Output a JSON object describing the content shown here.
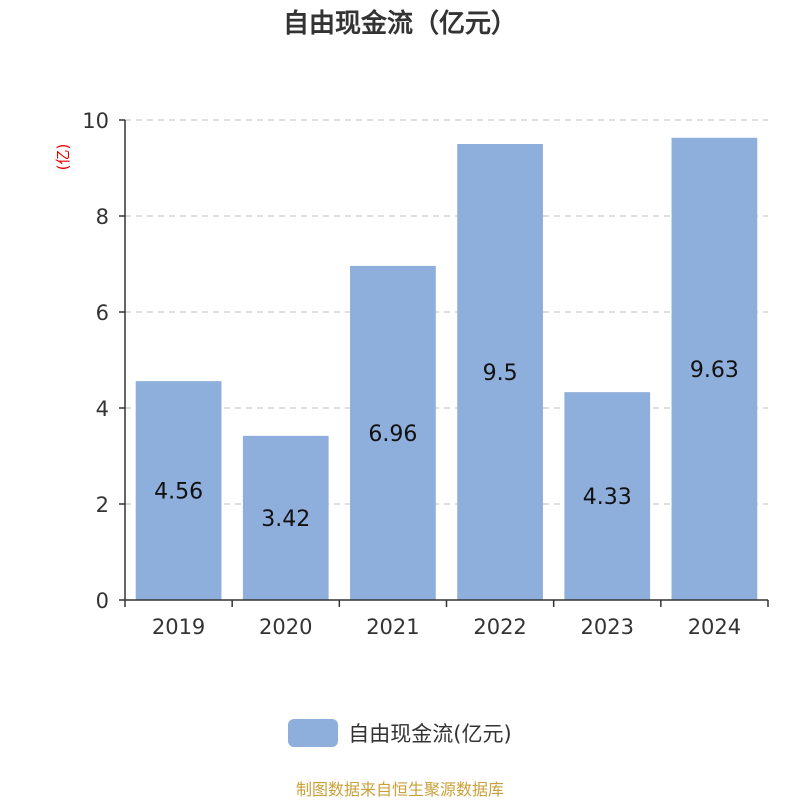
{
  "chart_data": {
    "type": "bar",
    "title": "自由现金流（亿元）",
    "ylabel": "(亿)",
    "categories": [
      "2019",
      "2020",
      "2021",
      "2022",
      "2023",
      "2024"
    ],
    "series": [
      {
        "name": "自由现金流(亿元)",
        "values": [
          4.56,
          3.42,
          6.96,
          9.5,
          4.33,
          9.63
        ],
        "data_labels": [
          "4.56",
          "3.42",
          "6.96",
          "9.5",
          "4.33",
          "9.63"
        ]
      }
    ],
    "ylim": [
      0,
      10
    ],
    "yticks": [
      0,
      2,
      4,
      6,
      8,
      10
    ],
    "grid": true,
    "legend_position": "bottom"
  },
  "colors": {
    "bar": "#8eaedb",
    "ylabel": "#e60000",
    "axis": "#333333",
    "grid": "#cccccc",
    "text": "#333333",
    "source": "#c9a13a"
  },
  "source_text": "制图数据来自恒生聚源数据库"
}
